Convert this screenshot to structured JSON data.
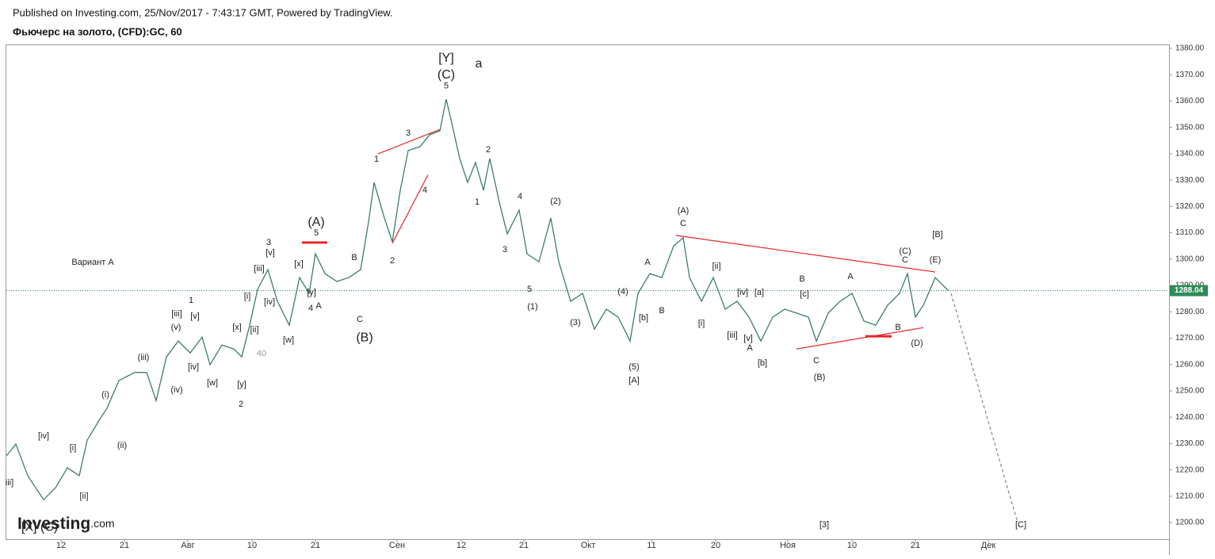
{
  "header": {
    "published": "Published on Investing.com, 25/Nov/2017 - 7:43:17 GMT, Powered by TradingView.",
    "logo": "Investing",
    "logo_suffix": ".com"
  },
  "chart_data": {
    "type": "line",
    "title": "Фьючерс на золото, (CFD):GC, 60",
    "color": "#3a7d6e",
    "x": [
      0,
      1.2,
      2.7,
      4.7,
      6.2,
      7.7,
      9.2,
      10.2,
      11.7,
      12.7,
      14.2,
      16.2,
      17.7,
      18.9,
      20.2,
      21.7,
      23.2,
      24.7,
      25.7,
      27.2,
      28.7,
      29.7,
      30.7,
      31.7,
      33,
      34.2,
      35.7,
      37,
      38.2,
      39,
      40.2,
      41.7,
      43.2,
      44.7,
      45.7,
      46.4,
      47.7,
      48.7,
      49.7,
      50.7,
      52.2,
      53.4,
      54.7,
      55.5,
      56.2,
      57.2,
      58.2,
      59.2,
      60.2,
      61,
      62.2,
      63.2,
      64.7,
      65.7,
      67.2,
      68.7,
      69.7,
      71.2,
      72.7,
      74.2,
      75.7,
      77.2,
      78.7,
      79.7,
      81.2,
      82.7,
      84.2,
      85.4,
      86.2,
      87.7,
      89.2,
      90.7,
      92.2,
      93.7,
      95.2,
      96.7,
      98.2,
      99.7,
      101.2,
      102.2,
      103.7,
      105.2,
      106.7,
      108.2,
      109.7,
      111.2,
      112.7,
      113.7,
      114.7,
      115.7,
      117.2,
      118.7,
      118.9
    ],
    "values": [
      1225.3,
      1229.8,
      1217.8,
      1208.7,
      1213.2,
      1220.8,
      1217.8,
      1231.3,
      1238.8,
      1243.4,
      1253.9,
      1257,
      1257,
      1246.3,
      1262.9,
      1268.9,
      1264.4,
      1270.4,
      1259.9,
      1267.4,
      1265.9,
      1262.9,
      1274.9,
      1288.5,
      1296,
      1284,
      1274.9,
      1293,
      1287,
      1302,
      1294.5,
      1291.5,
      1293,
      1296,
      1314.1,
      1329.1,
      1315.6,
      1306.6,
      1326.1,
      1341.2,
      1342.7,
      1347.2,
      1348.7,
      1360.7,
      1351.7,
      1338.2,
      1329.1,
      1336.7,
      1326.1,
      1338.2,
      1321.6,
      1309.6,
      1318.6,
      1302,
      1299,
      1315.6,
      1299,
      1284,
      1287,
      1273.4,
      1281,
      1278,
      1268.9,
      1287,
      1294.5,
      1293,
      1305,
      1308.1,
      1293,
      1284,
      1293,
      1281,
      1284,
      1278,
      1268.9,
      1278,
      1281,
      1279.5,
      1278,
      1268.9,
      1279.5,
      1284,
      1287,
      1276.5,
      1274.9,
      1282.5,
      1287,
      1294.5,
      1278,
      1282.5,
      1293,
      1288.5,
      1288.04
    ],
    "last_price": {
      "value": 1288.04,
      "label": "1288.04"
    },
    "xlim": [
      0,
      146.7
    ],
    "xticks": [
      {
        "value": 6.9,
        "label": "12"
      },
      {
        "value": 14.9,
        "label": "21"
      },
      {
        "value": 22.9,
        "label": "Авг"
      },
      {
        "value": 31,
        "label": "10"
      },
      {
        "value": 39,
        "label": "21"
      },
      {
        "value": 49.3,
        "label": "Сен"
      },
      {
        "value": 57.4,
        "label": "12"
      },
      {
        "value": 65.3,
        "label": "21"
      },
      {
        "value": 73.4,
        "label": "Окт"
      },
      {
        "value": 81.4,
        "label": "11"
      },
      {
        "value": 89.5,
        "label": "20"
      },
      {
        "value": 98.6,
        "label": "Ноя"
      },
      {
        "value": 106.7,
        "label": "10"
      },
      {
        "value": 114.7,
        "label": "21"
      },
      {
        "value": 123.9,
        "label": "Дек"
      }
    ],
    "ylim": [
      1193.7,
      1381.5
    ],
    "yticks": [
      {
        "value": 1200,
        "label": "1200.00"
      },
      {
        "value": 1210,
        "label": "1210.00"
      },
      {
        "value": 1220,
        "label": "1220.00"
      },
      {
        "value": 1230,
        "label": "1230.00"
      },
      {
        "value": 1240,
        "label": "1240.00"
      },
      {
        "value": 1250,
        "label": "1250.00"
      },
      {
        "value": 1260,
        "label": "1260.00"
      },
      {
        "value": 1270,
        "label": "1270.00"
      },
      {
        "value": 1280,
        "label": "1280.00"
      },
      {
        "value": 1290,
        "label": "1290.00"
      },
      {
        "value": 1300,
        "label": "1300.00"
      },
      {
        "value": 1310,
        "label": "1310.00"
      },
      {
        "value": 1320,
        "label": "1320.00"
      },
      {
        "value": 1330,
        "label": "1330.00"
      },
      {
        "value": 1340,
        "label": "1340.00"
      },
      {
        "value": 1350,
        "label": "1350.00"
      },
      {
        "value": 1360,
        "label": "1360.00"
      },
      {
        "value": 1370,
        "label": "1370.00"
      },
      {
        "value": 1380,
        "label": "1380.00"
      }
    ],
    "projection": {
      "color": "#888888",
      "x": [
        119.2,
        127.5
      ],
      "values": [
        1287,
        1201
      ]
    },
    "trendlines": {
      "color": "#e8262b",
      "lines": [
        {
          "x": [
            84.5,
            117.2
          ],
          "values": [
            1309,
            1295.1
          ]
        },
        {
          "x": [
            99.7,
            115.7
          ],
          "values": [
            1265.9,
            1274
          ]
        },
        {
          "x": [
            46.9,
            54.7
          ],
          "values": [
            1340,
            1349.2
          ]
        },
        {
          "x": [
            48.7,
            53.2
          ],
          "values": [
            1306,
            1332
          ]
        },
        {
          "x": [
            37.3,
            40.5
          ],
          "values": [
            1306.3,
            1306.3
          ]
        },
        {
          "x": [
            108.4,
            111.7
          ],
          "values": [
            1270.7,
            1270.7
          ]
        }
      ]
    },
    "annotations": [
      {
        "text": "[Y]",
        "x": 55.5,
        "y": 1376.1,
        "size": "large"
      },
      {
        "text": "(C)",
        "x": 55.5,
        "y": 1369.8,
        "size": "large"
      },
      {
        "text": "a",
        "x": 59.6,
        "y": 1374,
        "size": "large"
      },
      {
        "text": "5",
        "x": 55.5,
        "y": 1365.6
      },
      {
        "text": "(A)",
        "x": 39.1,
        "y": 1313.8,
        "size": "large"
      },
      {
        "text": "5",
        "x": 39.1,
        "y": 1309.9
      },
      {
        "text": "(B)",
        "x": 45.2,
        "y": 1270.1,
        "size": "large"
      },
      {
        "text": "Вариант A",
        "x": 10.9,
        "y": 1298.7
      },
      {
        "text": "1",
        "x": 46.7,
        "y": 1337.9
      },
      {
        "text": "3",
        "x": 50.7,
        "y": 1347.8
      },
      {
        "text": "4",
        "x": 52.8,
        "y": 1326.1
      },
      {
        "text": "2",
        "x": 48.7,
        "y": 1299.3
      },
      {
        "text": "2",
        "x": 60.8,
        "y": 1341.5
      },
      {
        "text": "1",
        "x": 59.4,
        "y": 1321.6
      },
      {
        "text": "4",
        "x": 64.8,
        "y": 1323.7
      },
      {
        "text": "3",
        "x": 62.9,
        "y": 1303.5
      },
      {
        "text": "5",
        "x": 66,
        "y": 1288.5
      },
      {
        "text": "(1)",
        "x": 66.4,
        "y": 1281.9
      },
      {
        "text": "(2)",
        "x": 69.3,
        "y": 1321.9
      },
      {
        "text": "(3)",
        "x": 71.8,
        "y": 1275.9
      },
      {
        "text": "(4)",
        "x": 77.8,
        "y": 1287.6
      },
      {
        "text": "(5)",
        "x": 79.2,
        "y": 1259
      },
      {
        "text": "[A]",
        "x": 79.2,
        "y": 1253.9
      },
      {
        "text": "[b]",
        "x": 80.4,
        "y": 1277.7
      },
      {
        "text": "A",
        "x": 80.9,
        "y": 1298.7
      },
      {
        "text": "B",
        "x": 82.7,
        "y": 1280.4
      },
      {
        "text": "C",
        "x": 85.4,
        "y": 1313.5
      },
      {
        "text": "(A)",
        "x": 85.4,
        "y": 1318.3
      },
      {
        "text": "[ii]",
        "x": 89.6,
        "y": 1297.2
      },
      {
        "text": "[i]",
        "x": 87.7,
        "y": 1275.6
      },
      {
        "text": "[iv]",
        "x": 92.9,
        "y": 1287.3
      },
      {
        "text": "[a]",
        "x": 95,
        "y": 1287.3
      },
      {
        "text": "[iii]",
        "x": 91.6,
        "y": 1271
      },
      {
        "text": "[v]",
        "x": 93.6,
        "y": 1269.8
      },
      {
        "text": "A",
        "x": 93.8,
        "y": 1266.2
      },
      {
        "text": "[b]",
        "x": 95.4,
        "y": 1260.5
      },
      {
        "text": "B",
        "x": 100.4,
        "y": 1292.4
      },
      {
        "text": "[c]",
        "x": 100.7,
        "y": 1286.7
      },
      {
        "text": "C",
        "x": 102.2,
        "y": 1261.4
      },
      {
        "text": "(B)",
        "x": 102.6,
        "y": 1255.1
      },
      {
        "text": "A",
        "x": 106.5,
        "y": 1293.3
      },
      {
        "text": "B",
        "x": 112.5,
        "y": 1274
      },
      {
        "text": "(C)",
        "x": 113.4,
        "y": 1302.9
      },
      {
        "text": "C",
        "x": 113.4,
        "y": 1299.6
      },
      {
        "text": "(D)",
        "x": 114.9,
        "y": 1268
      },
      {
        "text": "(E)",
        "x": 117.2,
        "y": 1299.6
      },
      {
        "text": "[B]",
        "x": 117.5,
        "y": 1309.3
      },
      {
        "text": "[3]",
        "x": 103.2,
        "y": 1199.1
      },
      {
        "text": "[C]",
        "x": 128,
        "y": 1199.1
      },
      {
        "text": "[iv]",
        "x": 4.7,
        "y": 1232.8
      },
      {
        "text": "[i]",
        "x": 8.4,
        "y": 1228.3
      },
      {
        "text": "[ii]",
        "x": 9.8,
        "y": 1209.9
      },
      {
        "text": "iii]",
        "x": 0.4,
        "y": 1215
      },
      {
        "text": "[X] (C)",
        "x": 4.2,
        "y": 1198.2,
        "size": "large"
      },
      {
        "text": "(i)",
        "x": 12.5,
        "y": 1248.5
      },
      {
        "text": "(ii)",
        "x": 14.6,
        "y": 1229.2
      },
      {
        "text": "(iii)",
        "x": 17.3,
        "y": 1262.6
      },
      {
        "text": "(iv)",
        "x": 21.5,
        "y": 1250.3
      },
      {
        "text": "(v)",
        "x": 21.4,
        "y": 1274
      },
      {
        "text": "[iii]",
        "x": 21.5,
        "y": 1279.2
      },
      {
        "text": "[v]",
        "x": 23.8,
        "y": 1278.3
      },
      {
        "text": "1",
        "x": 23.3,
        "y": 1284.3
      },
      {
        "text": "[iv]",
        "x": 23.6,
        "y": 1259
      },
      {
        "text": "[w]",
        "x": 26,
        "y": 1253
      },
      {
        "text": "[y]",
        "x": 29.7,
        "y": 1252.4
      },
      {
        "text": "2",
        "x": 29.6,
        "y": 1244.9
      },
      {
        "text": "[x]",
        "x": 29.1,
        "y": 1274
      },
      {
        "text": "[ii]",
        "x": 31.3,
        "y": 1273.1
      },
      {
        "text": "[i]",
        "x": 30.4,
        "y": 1285.8
      },
      {
        "text": "40",
        "x": 32.2,
        "y": 1264.1,
        "color": "#999999"
      },
      {
        "text": "[iii]",
        "x": 31.9,
        "y": 1296.3
      },
      {
        "text": "[v]",
        "x": 33.3,
        "y": 1302.3
      },
      {
        "text": "3",
        "x": 33.1,
        "y": 1306.3
      },
      {
        "text": "[iv]",
        "x": 33.2,
        "y": 1283.7
      },
      {
        "text": "[w]",
        "x": 35.6,
        "y": 1269.2
      },
      {
        "text": "[x]",
        "x": 36.9,
        "y": 1298.1
      },
      {
        "text": "[y]",
        "x": 38.5,
        "y": 1287.3
      },
      {
        "text": "4",
        "x": 38.4,
        "y": 1281.3
      },
      {
        "text": "A",
        "x": 39.4,
        "y": 1282.2
      },
      {
        "text": "B",
        "x": 43.9,
        "y": 1300.5
      },
      {
        "text": "C",
        "x": 44.6,
        "y": 1277.1
      }
    ]
  }
}
